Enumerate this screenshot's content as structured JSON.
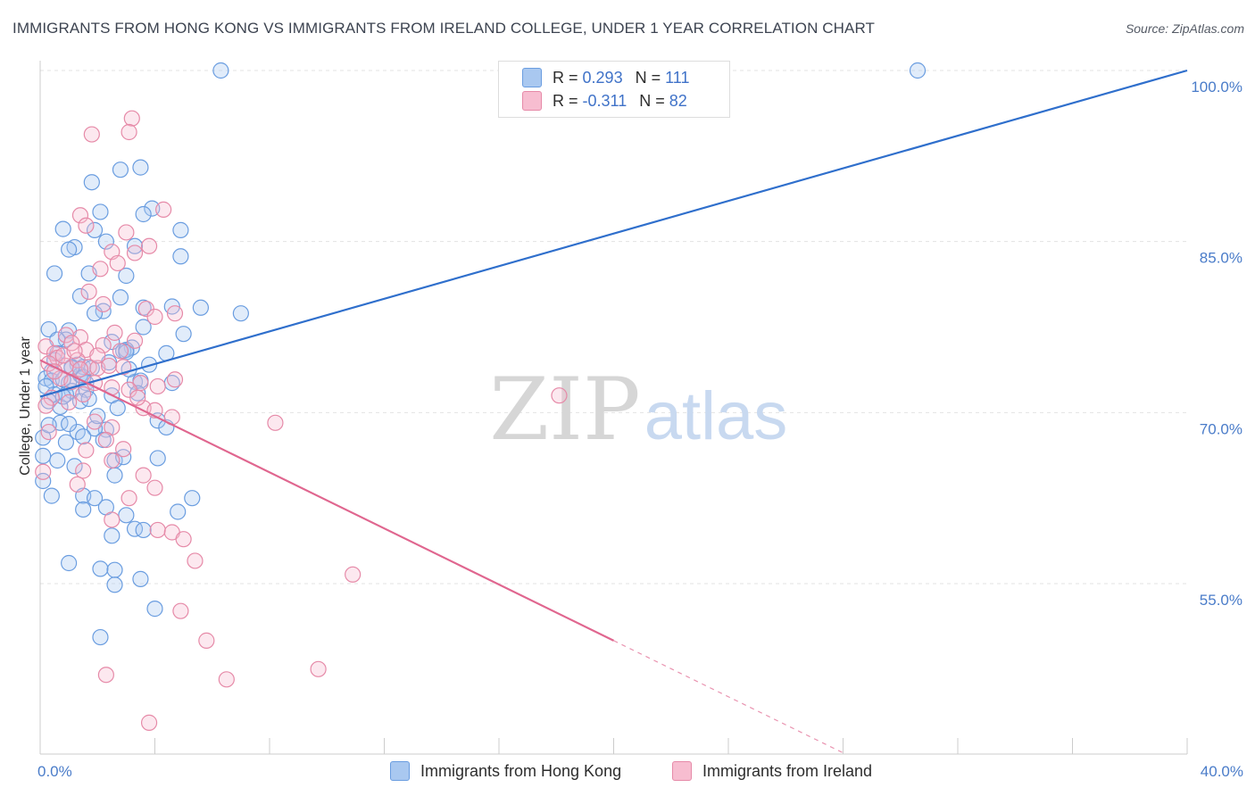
{
  "header": {
    "title": "IMMIGRANTS FROM HONG KONG VS IMMIGRANTS FROM IRELAND COLLEGE, UNDER 1 YEAR CORRELATION CHART",
    "source": "Source: ZipAtlas.com"
  },
  "watermark": {
    "zip": "ZIP",
    "atlas": "atlas"
  },
  "legend": {
    "rows": [
      {
        "r_label": "R =",
        "r_value": "0.293",
        "n_label": "N =",
        "n_value": "111",
        "color": "#a9c8f0",
        "border": "#6a9de0"
      },
      {
        "r_label": "R =",
        "r_value": "-0.311",
        "n_label": "N =",
        "n_value": "82",
        "color": "#f7bdd0",
        "border": "#e68aa8"
      }
    ]
  },
  "bottom_legend": [
    {
      "label": "Immigrants from Hong Kong",
      "color": "#a9c8f0",
      "border": "#6a9de0"
    },
    {
      "label": "Immigrants from Ireland",
      "color": "#f7bdd0",
      "border": "#e68aa8"
    }
  ],
  "chart_data": {
    "type": "scatter",
    "title": "IMMIGRANTS FROM HONG KONG VS IMMIGRANTS FROM IRELAND COLLEGE, UNDER 1 YEAR CORRELATION CHART",
    "xlabel": "",
    "ylabel": "College, Under 1 year",
    "xlim": [
      0,
      40
    ],
    "ylim": [
      40,
      100
    ],
    "x_tick_labels": [
      "0.0%",
      "40.0%"
    ],
    "y_ticks": [
      55,
      70,
      85,
      100
    ],
    "y_tick_labels": [
      "55.0%",
      "70.0%",
      "85.0%",
      "100.0%"
    ],
    "grid": "horizontal dashed",
    "legend_position": "top-center",
    "series": [
      {
        "name": "Immigrants from Hong Kong",
        "color": "#6a9de0",
        "fill": "rgba(170,200,240,0.35)",
        "trend": {
          "x": [
            0,
            40
          ],
          "y": [
            71.4,
            100
          ],
          "dashed_from_x": null,
          "style": "solid",
          "color": "#2f6fcc"
        },
        "points": [
          [
            6.3,
            100
          ],
          [
            30.6,
            100
          ],
          [
            3.5,
            91.5
          ],
          [
            2.8,
            91.3
          ],
          [
            1.8,
            90.2
          ],
          [
            3.9,
            87.9
          ],
          [
            3.6,
            87.4
          ],
          [
            2.1,
            87.6
          ],
          [
            0.8,
            86.1
          ],
          [
            1.9,
            86.0
          ],
          [
            4.9,
            86.0
          ],
          [
            2.3,
            85.0
          ],
          [
            3.3,
            84.6
          ],
          [
            1.2,
            84.5
          ],
          [
            1.0,
            84.3
          ],
          [
            4.9,
            83.7
          ],
          [
            0.5,
            82.2
          ],
          [
            1.7,
            82.2
          ],
          [
            3.0,
            82.0
          ],
          [
            1.4,
            80.2
          ],
          [
            2.8,
            80.1
          ],
          [
            3.6,
            79.2
          ],
          [
            4.6,
            79.3
          ],
          [
            5.6,
            79.2
          ],
          [
            2.2,
            78.9
          ],
          [
            1.9,
            78.7
          ],
          [
            7.0,
            78.7
          ],
          [
            0.3,
            77.3
          ],
          [
            1.0,
            77.2
          ],
          [
            3.6,
            77.5
          ],
          [
            5.0,
            76.9
          ],
          [
            0.9,
            76.4
          ],
          [
            0.6,
            76.4
          ],
          [
            2.5,
            76.2
          ],
          [
            3.2,
            75.7
          ],
          [
            2.9,
            75.4
          ],
          [
            3.0,
            75.5
          ],
          [
            4.4,
            75.2
          ],
          [
            0.6,
            75.2
          ],
          [
            0.4,
            73.6
          ],
          [
            1.3,
            74.2
          ],
          [
            1.5,
            74.0
          ],
          [
            1.1,
            74.0
          ],
          [
            3.8,
            74.2
          ],
          [
            0.2,
            73.0
          ],
          [
            0.4,
            72.8
          ],
          [
            1.0,
            72.6
          ],
          [
            1.6,
            72.6
          ],
          [
            3.3,
            72.7
          ],
          [
            3.5,
            72.8
          ],
          [
            4.6,
            72.6
          ],
          [
            1.6,
            72.0
          ],
          [
            1.1,
            71.9
          ],
          [
            0.9,
            71.6
          ],
          [
            0.5,
            71.6
          ],
          [
            0.3,
            71.0
          ],
          [
            2.5,
            71.5
          ],
          [
            1.4,
            71.0
          ],
          [
            1.7,
            71.2
          ],
          [
            3.4,
            71.7
          ],
          [
            2.7,
            70.4
          ],
          [
            0.7,
            69.1
          ],
          [
            4.1,
            69.3
          ],
          [
            4.4,
            68.7
          ],
          [
            1.3,
            68.3
          ],
          [
            2.3,
            68.5
          ],
          [
            1.9,
            68.6
          ],
          [
            0.1,
            67.8
          ],
          [
            2.2,
            67.6
          ],
          [
            0.9,
            67.4
          ],
          [
            1.5,
            67.9
          ],
          [
            0.1,
            66.2
          ],
          [
            0.6,
            65.8
          ],
          [
            2.6,
            65.8
          ],
          [
            2.9,
            66.1
          ],
          [
            4.1,
            66.0
          ],
          [
            2.6,
            64.5
          ],
          [
            0.1,
            64.0
          ],
          [
            0.4,
            62.7
          ],
          [
            1.5,
            62.7
          ],
          [
            1.9,
            62.5
          ],
          [
            5.3,
            62.5
          ],
          [
            2.3,
            61.7
          ],
          [
            1.5,
            61.5
          ],
          [
            3.0,
            61.0
          ],
          [
            4.8,
            61.3
          ],
          [
            3.3,
            59.8
          ],
          [
            3.6,
            59.7
          ],
          [
            2.5,
            59.2
          ],
          [
            1.0,
            56.8
          ],
          [
            2.1,
            56.3
          ],
          [
            2.6,
            56.2
          ],
          [
            3.5,
            55.4
          ],
          [
            2.6,
            54.9
          ],
          [
            4.0,
            52.8
          ],
          [
            2.1,
            50.3
          ],
          [
            3.0,
            75.3
          ],
          [
            1.4,
            73.3
          ],
          [
            0.8,
            72.9
          ],
          [
            1.1,
            73.9
          ],
          [
            2.4,
            74.4
          ],
          [
            0.2,
            72.3
          ],
          [
            1.5,
            73.1
          ],
          [
            0.5,
            74.6
          ],
          [
            1.8,
            73.9
          ],
          [
            0.7,
            70.5
          ],
          [
            2.0,
            69.7
          ],
          [
            1.2,
            65.3
          ],
          [
            0.3,
            68.9
          ],
          [
            0.8,
            71.4
          ],
          [
            3.1,
            73.8
          ],
          [
            1.0,
            69.0
          ]
        ]
      },
      {
        "name": "Immigrants from Ireland",
        "color": "#e68aa8",
        "fill": "rgba(247,189,208,0.35)",
        "trend": {
          "x": [
            0,
            40
          ],
          "y": [
            74.6,
            25.4
          ],
          "dashed_from_x": 20,
          "style": "solid-then-dashed",
          "color": "#e0668f"
        },
        "points": [
          [
            3.2,
            95.8
          ],
          [
            3.1,
            94.6
          ],
          [
            1.8,
            94.4
          ],
          [
            4.3,
            87.8
          ],
          [
            1.4,
            87.3
          ],
          [
            3.0,
            85.8
          ],
          [
            1.6,
            86.4
          ],
          [
            3.8,
            84.6
          ],
          [
            3.3,
            84.0
          ],
          [
            2.5,
            84.1
          ],
          [
            2.1,
            82.6
          ],
          [
            2.7,
            83.1
          ],
          [
            1.7,
            80.6
          ],
          [
            2.2,
            79.5
          ],
          [
            3.7,
            79.1
          ],
          [
            4.7,
            78.7
          ],
          [
            4.0,
            78.4
          ],
          [
            0.9,
            76.8
          ],
          [
            1.4,
            76.6
          ],
          [
            2.6,
            77.0
          ],
          [
            1.1,
            76.1
          ],
          [
            0.2,
            75.8
          ],
          [
            0.5,
            75.2
          ],
          [
            1.6,
            75.5
          ],
          [
            2.8,
            75.4
          ],
          [
            3.3,
            76.3
          ],
          [
            2.2,
            75.9
          ],
          [
            0.6,
            74.8
          ],
          [
            0.3,
            74.3
          ],
          [
            0.9,
            74.1
          ],
          [
            1.3,
            74.6
          ],
          [
            1.7,
            74.0
          ],
          [
            2.0,
            73.9
          ],
          [
            2.4,
            74.1
          ],
          [
            0.7,
            73.0
          ],
          [
            1.1,
            72.7
          ],
          [
            1.9,
            72.6
          ],
          [
            3.5,
            72.6
          ],
          [
            4.1,
            72.3
          ],
          [
            4.7,
            72.9
          ],
          [
            2.5,
            72.2
          ],
          [
            1.5,
            71.6
          ],
          [
            3.1,
            72.0
          ],
          [
            0.4,
            71.3
          ],
          [
            0.2,
            70.6
          ],
          [
            3.6,
            70.4
          ],
          [
            4.0,
            70.2
          ],
          [
            4.6,
            69.6
          ],
          [
            1.9,
            69.2
          ],
          [
            2.5,
            68.7
          ],
          [
            8.2,
            69.1
          ],
          [
            18.1,
            71.5
          ],
          [
            0.3,
            68.3
          ],
          [
            2.3,
            67.6
          ],
          [
            2.9,
            66.8
          ],
          [
            1.6,
            66.7
          ],
          [
            2.5,
            65.8
          ],
          [
            1.5,
            64.9
          ],
          [
            3.6,
            64.5
          ],
          [
            1.3,
            63.7
          ],
          [
            4.0,
            63.4
          ],
          [
            3.1,
            62.5
          ],
          [
            0.1,
            64.8
          ],
          [
            2.5,
            60.6
          ],
          [
            4.1,
            59.7
          ],
          [
            4.6,
            59.5
          ],
          [
            5.0,
            58.9
          ],
          [
            5.4,
            57.0
          ],
          [
            10.9,
            55.8
          ],
          [
            4.9,
            52.6
          ],
          [
            5.8,
            50.0
          ],
          [
            2.3,
            47.0
          ],
          [
            6.5,
            46.6
          ],
          [
            9.7,
            47.5
          ],
          [
            3.8,
            42.8
          ],
          [
            0.8,
            75.0
          ],
          [
            1.2,
            75.4
          ],
          [
            2.0,
            75.0
          ],
          [
            2.9,
            74.0
          ],
          [
            0.5,
            73.6
          ],
          [
            1.4,
            73.8
          ],
          [
            3.4,
            71.3
          ],
          [
            1.0,
            70.9
          ]
        ]
      }
    ]
  }
}
